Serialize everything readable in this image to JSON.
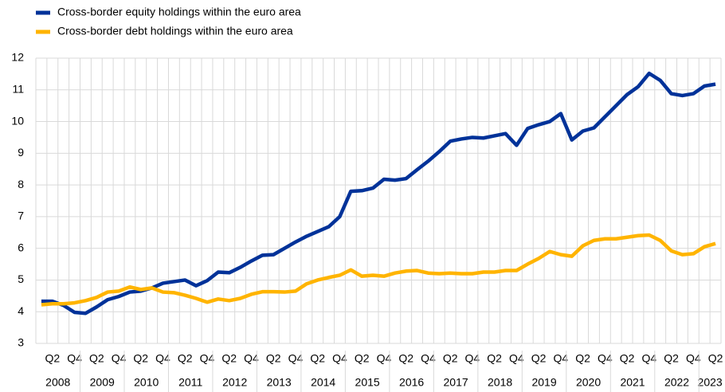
{
  "chart_data": {
    "type": "line",
    "categories": [
      null,
      "Q2",
      null,
      "Q4",
      null,
      "Q2",
      null,
      "Q4",
      null,
      "Q2",
      null,
      "Q4",
      null,
      "Q2",
      null,
      "Q4",
      null,
      "Q2",
      null,
      "Q4",
      null,
      "Q2",
      null,
      "Q4",
      null,
      "Q2",
      null,
      "Q4",
      null,
      "Q2",
      null,
      "Q4",
      null,
      "Q2",
      null,
      "Q4",
      null,
      "Q2",
      null,
      "Q4",
      null,
      "Q2",
      null,
      "Q4",
      null,
      "Q2",
      null,
      "Q4",
      null,
      "Q2",
      null,
      "Q4",
      null,
      "Q2",
      null,
      "Q4",
      null,
      "Q2",
      null,
      "Q4",
      null,
      "Q2"
    ],
    "years": [
      "2008",
      "2009",
      "2010",
      "2011",
      "2012",
      "2013",
      "2014",
      "2015",
      "2016",
      "2017",
      "2018",
      "2019",
      "2020",
      "2021",
      "2022",
      "2023"
    ],
    "series": [
      {
        "name": "Cross-border equity holdings within the euro area",
        "color": "#003299",
        "values": [
          4.33,
          4.33,
          4.2,
          3.98,
          3.95,
          4.15,
          4.38,
          4.48,
          4.62,
          4.65,
          4.75,
          4.9,
          4.95,
          5.0,
          4.82,
          4.98,
          5.25,
          5.23,
          5.4,
          5.6,
          5.78,
          5.8,
          6.0,
          6.2,
          6.38,
          6.53,
          6.68,
          7.0,
          7.8,
          7.82,
          7.9,
          8.18,
          8.15,
          8.2,
          8.48,
          8.75,
          9.05,
          9.38,
          9.45,
          9.5,
          9.48,
          9.55,
          9.62,
          9.25,
          9.78,
          9.9,
          10.0,
          10.25,
          9.42,
          9.7,
          9.8,
          10.15,
          10.5,
          10.85,
          11.1,
          11.52,
          11.3,
          10.88,
          10.82,
          10.88,
          11.12,
          11.18
        ]
      },
      {
        "name": "Cross-border debt holdings within the euro area",
        "color": "#ffb400",
        "values": [
          4.22,
          4.25,
          4.25,
          4.28,
          4.35,
          4.45,
          4.62,
          4.65,
          4.78,
          4.7,
          4.75,
          4.62,
          4.6,
          4.52,
          4.42,
          4.3,
          4.4,
          4.35,
          4.42,
          4.55,
          4.63,
          4.63,
          4.62,
          4.65,
          4.88,
          5.0,
          5.08,
          5.15,
          5.32,
          5.12,
          5.15,
          5.12,
          5.22,
          5.28,
          5.3,
          5.22,
          5.2,
          5.22,
          5.2,
          5.2,
          5.25,
          5.25,
          5.3,
          5.3,
          5.5,
          5.68,
          5.9,
          5.8,
          5.75,
          6.08,
          6.25,
          6.3,
          6.3,
          6.35,
          6.4,
          6.42,
          6.25,
          5.92,
          5.8,
          5.83,
          6.05,
          6.15
        ]
      }
    ],
    "ylim": [
      3,
      12
    ],
    "yticks": [
      3,
      4,
      5,
      6,
      7,
      8,
      9,
      10,
      11,
      12
    ],
    "grid": true
  }
}
